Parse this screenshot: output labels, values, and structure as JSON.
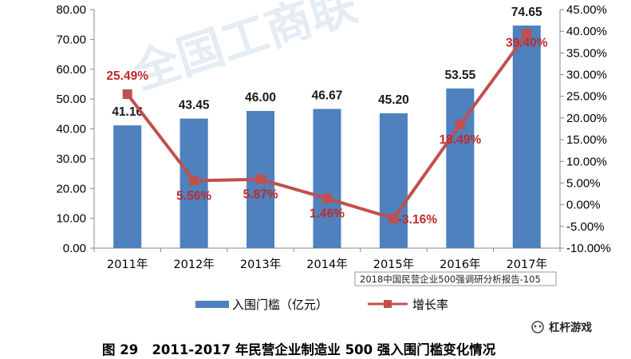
{
  "chart_data": {
    "type": "bar",
    "categories": [
      "2011年",
      "2012年",
      "2013年",
      "2014年",
      "2015年",
      "2016年",
      "2017年"
    ],
    "series": [
      {
        "name": "入围门槛（亿元）",
        "type": "bar",
        "axis": "left",
        "values": [
          41.16,
          43.45,
          46.0,
          46.67,
          45.2,
          53.55,
          74.65
        ],
        "labels": [
          "41.16",
          "43.45",
          "46.00",
          "46.67",
          "45.20",
          "53.55",
          "74.65"
        ],
        "color": "#4e81bd"
      },
      {
        "name": "增长率",
        "type": "line",
        "axis": "right",
        "values": [
          25.49,
          5.56,
          5.87,
          1.46,
          -3.16,
          18.49,
          39.4
        ],
        "labels": [
          "25.49%",
          "5.56%",
          "5.87%",
          "1.46%",
          "-3.16%",
          "18.49%",
          "39.40%"
        ],
        "color": "#c0504d",
        "label_color": "#c0292b"
      }
    ],
    "left_axis": {
      "ylim": [
        0,
        80
      ],
      "ticks": [
        0,
        10,
        20,
        30,
        40,
        50,
        60,
        70,
        80
      ],
      "tick_labels": [
        "0.00",
        "10.00",
        "20.00",
        "30.00",
        "40.00",
        "50.00",
        "60.00",
        "70.00",
        "80.00"
      ]
    },
    "right_axis": {
      "ylim": [
        -10,
        45
      ],
      "ticks": [
        -10,
        -5,
        0,
        5,
        10,
        15,
        20,
        25,
        30,
        35,
        40,
        45
      ],
      "tick_labels": [
        "-10.00%",
        "-5.00%",
        "0.00%",
        "5.00%",
        "10.00%",
        "15.00%",
        "20.00%",
        "25.00%",
        "30.00%",
        "35.00%",
        "40.00%",
        "45.00%"
      ]
    },
    "grid": false,
    "legend_position": "bottom"
  },
  "caption": "图 29   2011-2017 年民营企业制造业 500 强入围门槛变化情况",
  "source_note": "2018中国民营企业500强调研分析报告-105",
  "watermark": "全国工商联",
  "brand": "杠杆游戏"
}
